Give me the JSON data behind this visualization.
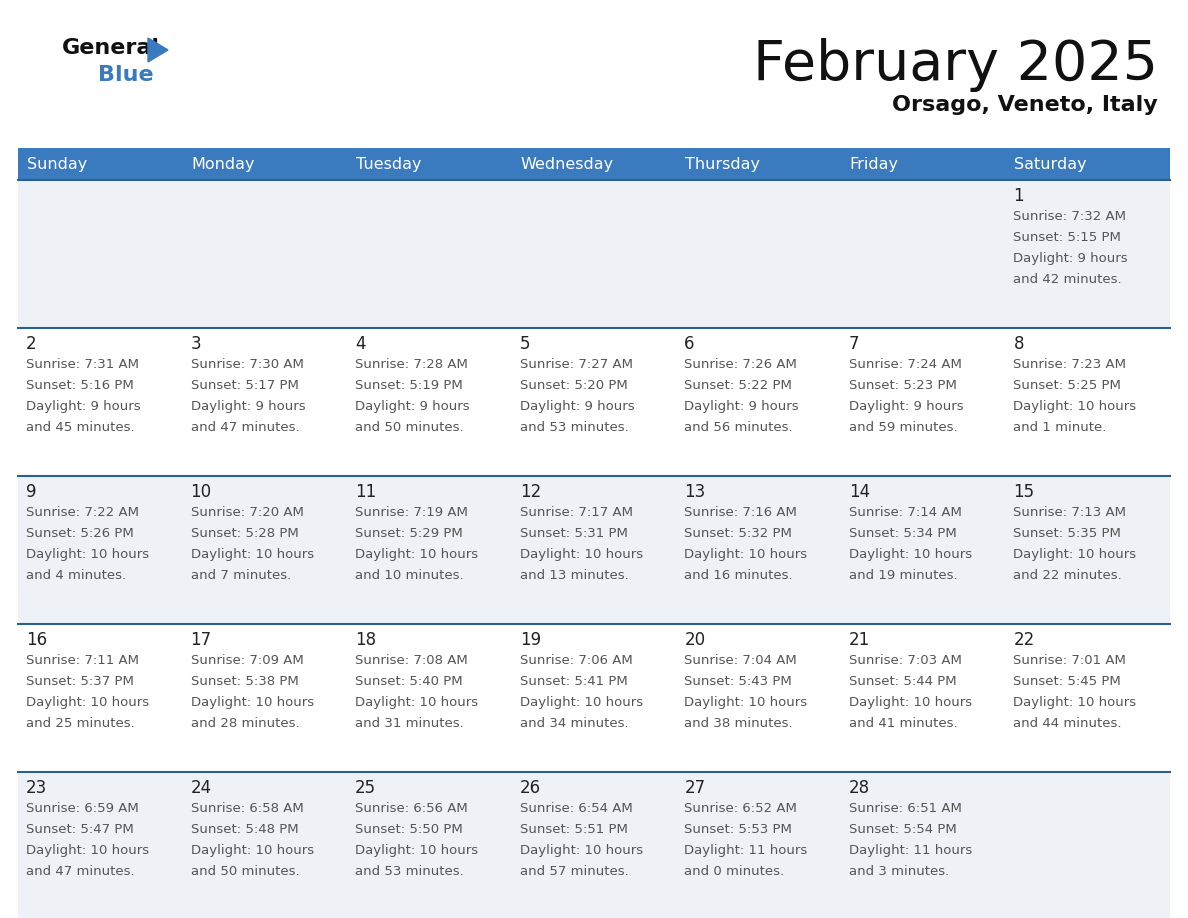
{
  "title": "February 2025",
  "subtitle": "Orsago, Veneto, Italy",
  "header_bg": "#3a7abf",
  "header_text": "#ffffff",
  "day_headers": [
    "Sunday",
    "Monday",
    "Tuesday",
    "Wednesday",
    "Thursday",
    "Friday",
    "Saturday"
  ],
  "cell_bg_light": "#eef2f7",
  "cell_bg_white": "#ffffff",
  "row_line_color": "#2c5f8a",
  "text_color": "#555555",
  "day_num_color": "#222222",
  "calendar": [
    [
      {
        "day": null,
        "sunrise": null,
        "sunset": null,
        "daylight": null
      },
      {
        "day": null,
        "sunrise": null,
        "sunset": null,
        "daylight": null
      },
      {
        "day": null,
        "sunrise": null,
        "sunset": null,
        "daylight": null
      },
      {
        "day": null,
        "sunrise": null,
        "sunset": null,
        "daylight": null
      },
      {
        "day": null,
        "sunrise": null,
        "sunset": null,
        "daylight": null
      },
      {
        "day": null,
        "sunrise": null,
        "sunset": null,
        "daylight": null
      },
      {
        "day": 1,
        "sunrise": "7:32 AM",
        "sunset": "5:15 PM",
        "daylight": "9 hours\nand 42 minutes."
      }
    ],
    [
      {
        "day": 2,
        "sunrise": "7:31 AM",
        "sunset": "5:16 PM",
        "daylight": "9 hours\nand 45 minutes."
      },
      {
        "day": 3,
        "sunrise": "7:30 AM",
        "sunset": "5:17 PM",
        "daylight": "9 hours\nand 47 minutes."
      },
      {
        "day": 4,
        "sunrise": "7:28 AM",
        "sunset": "5:19 PM",
        "daylight": "9 hours\nand 50 minutes."
      },
      {
        "day": 5,
        "sunrise": "7:27 AM",
        "sunset": "5:20 PM",
        "daylight": "9 hours\nand 53 minutes."
      },
      {
        "day": 6,
        "sunrise": "7:26 AM",
        "sunset": "5:22 PM",
        "daylight": "9 hours\nand 56 minutes."
      },
      {
        "day": 7,
        "sunrise": "7:24 AM",
        "sunset": "5:23 PM",
        "daylight": "9 hours\nand 59 minutes."
      },
      {
        "day": 8,
        "sunrise": "7:23 AM",
        "sunset": "5:25 PM",
        "daylight": "10 hours\nand 1 minute."
      }
    ],
    [
      {
        "day": 9,
        "sunrise": "7:22 AM",
        "sunset": "5:26 PM",
        "daylight": "10 hours\nand 4 minutes."
      },
      {
        "day": 10,
        "sunrise": "7:20 AM",
        "sunset": "5:28 PM",
        "daylight": "10 hours\nand 7 minutes."
      },
      {
        "day": 11,
        "sunrise": "7:19 AM",
        "sunset": "5:29 PM",
        "daylight": "10 hours\nand 10 minutes."
      },
      {
        "day": 12,
        "sunrise": "7:17 AM",
        "sunset": "5:31 PM",
        "daylight": "10 hours\nand 13 minutes."
      },
      {
        "day": 13,
        "sunrise": "7:16 AM",
        "sunset": "5:32 PM",
        "daylight": "10 hours\nand 16 minutes."
      },
      {
        "day": 14,
        "sunrise": "7:14 AM",
        "sunset": "5:34 PM",
        "daylight": "10 hours\nand 19 minutes."
      },
      {
        "day": 15,
        "sunrise": "7:13 AM",
        "sunset": "5:35 PM",
        "daylight": "10 hours\nand 22 minutes."
      }
    ],
    [
      {
        "day": 16,
        "sunrise": "7:11 AM",
        "sunset": "5:37 PM",
        "daylight": "10 hours\nand 25 minutes."
      },
      {
        "day": 17,
        "sunrise": "7:09 AM",
        "sunset": "5:38 PM",
        "daylight": "10 hours\nand 28 minutes."
      },
      {
        "day": 18,
        "sunrise": "7:08 AM",
        "sunset": "5:40 PM",
        "daylight": "10 hours\nand 31 minutes."
      },
      {
        "day": 19,
        "sunrise": "7:06 AM",
        "sunset": "5:41 PM",
        "daylight": "10 hours\nand 34 minutes."
      },
      {
        "day": 20,
        "sunrise": "7:04 AM",
        "sunset": "5:43 PM",
        "daylight": "10 hours\nand 38 minutes."
      },
      {
        "day": 21,
        "sunrise": "7:03 AM",
        "sunset": "5:44 PM",
        "daylight": "10 hours\nand 41 minutes."
      },
      {
        "day": 22,
        "sunrise": "7:01 AM",
        "sunset": "5:45 PM",
        "daylight": "10 hours\nand 44 minutes."
      }
    ],
    [
      {
        "day": 23,
        "sunrise": "6:59 AM",
        "sunset": "5:47 PM",
        "daylight": "10 hours\nand 47 minutes."
      },
      {
        "day": 24,
        "sunrise": "6:58 AM",
        "sunset": "5:48 PM",
        "daylight": "10 hours\nand 50 minutes."
      },
      {
        "day": 25,
        "sunrise": "6:56 AM",
        "sunset": "5:50 PM",
        "daylight": "10 hours\nand 53 minutes."
      },
      {
        "day": 26,
        "sunrise": "6:54 AM",
        "sunset": "5:51 PM",
        "daylight": "10 hours\nand 57 minutes."
      },
      {
        "day": 27,
        "sunrise": "6:52 AM",
        "sunset": "5:53 PM",
        "daylight": "11 hours\nand 0 minutes."
      },
      {
        "day": 28,
        "sunrise": "6:51 AM",
        "sunset": "5:54 PM",
        "daylight": "11 hours\nand 3 minutes."
      },
      {
        "day": null,
        "sunrise": null,
        "sunset": null,
        "daylight": null
      }
    ]
  ],
  "figsize": [
    11.88,
    9.18
  ],
  "dpi": 100
}
